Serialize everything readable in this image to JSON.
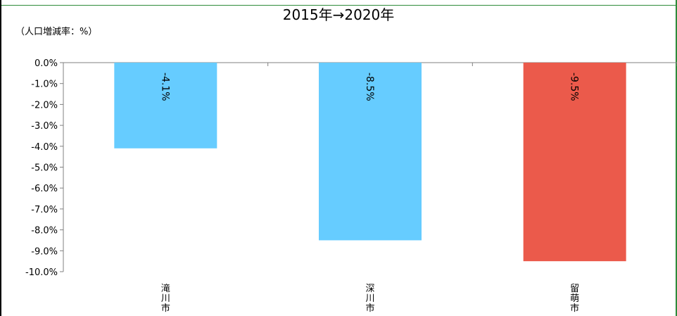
{
  "chart_data": {
    "type": "bar",
    "title": "2015年→2020年",
    "unit_note": "（人口増減率：%）",
    "categories": [
      "滝川市",
      "深川市",
      "留萌市"
    ],
    "values": [
      -4.1,
      -8.5,
      -9.5
    ],
    "data_labels": [
      "-4.1%",
      "-8.5%",
      "-9.5%"
    ],
    "bar_colors": [
      "#66ccff",
      "#66ccff",
      "#eb5a4b"
    ],
    "ylim": [
      -10.0,
      0.0
    ],
    "yticks": [
      0,
      -1,
      -2,
      -3,
      -4,
      -5,
      -6,
      -7,
      -8,
      -9,
      -10
    ],
    "ytick_labels": [
      "0.0%",
      "-1.0%",
      "-2.0%",
      "-3.0%",
      "-4.0%",
      "-5.0%",
      "-6.0%",
      "-7.0%",
      "-8.0%",
      "-9.0%",
      "-10.0%"
    ],
    "grid": false,
    "legend": "none"
  }
}
